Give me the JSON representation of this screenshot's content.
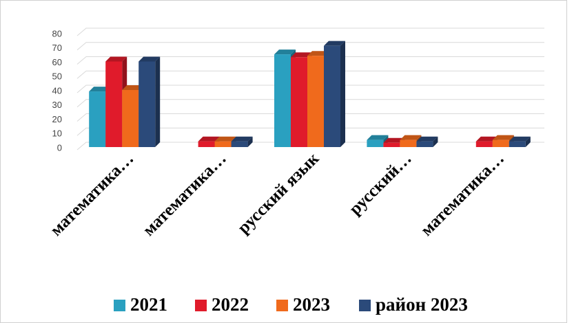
{
  "chart_data": {
    "type": "bar3d",
    "categories": [
      "математика…",
      "математика…",
      "русский язык",
      "русский…",
      "математика…"
    ],
    "series": [
      {
        "name": "2021",
        "color": "#2aa0c0",
        "values": [
          39,
          0,
          65,
          5,
          0
        ]
      },
      {
        "name": "2022",
        "color": "#e01b2b",
        "values": [
          60,
          4,
          63,
          3,
          4
        ]
      },
      {
        "name": "2023",
        "color": "#f06a1c",
        "values": [
          40,
          4,
          64,
          5,
          5
        ]
      },
      {
        "name": "район 2023",
        "color": "#2b4a7a",
        "values": [
          60,
          4,
          71,
          4,
          4
        ]
      }
    ],
    "ylim": [
      0,
      80
    ],
    "yticks": [
      0,
      10,
      20,
      30,
      40,
      50,
      60,
      70,
      80
    ],
    "grid": true,
    "legend": "bottom"
  }
}
